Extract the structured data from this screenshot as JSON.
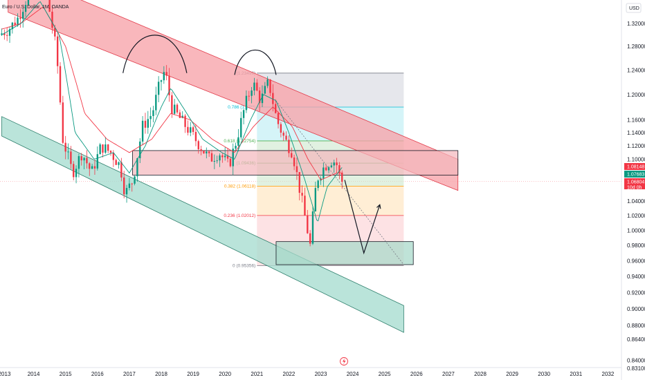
{
  "header": {
    "symbol_title": "Euro / U.S. Dollar, 1M, OANDA",
    "currency": "USD"
  },
  "colors": {
    "bull": "#089981",
    "bear": "#f23645",
    "ema_fast": "#089981",
    "ema_slow": "#f23645",
    "upper_channel_fill": "#f7a3a9",
    "upper_channel_stroke": "#e23a49",
    "lower_channel_fill": "#a6dccf",
    "lower_channel_stroke": "#2b7d6a",
    "supply_zone_fill": "#f4b6bc",
    "demand_zone_fill": "#a9d9cb",
    "tag_red": "#f23645",
    "tag_teal": "#089981",
    "tag_dark": "#787b86"
  },
  "price_tags": [
    {
      "label": "1.08148",
      "color": "tag_red"
    },
    {
      "label": "1.07683",
      "color": "tag_teal"
    },
    {
      "label": "1.06804",
      "color": "tag_red"
    },
    {
      "label": "10d 0h",
      "color": "tag_red"
    }
  ],
  "chart_data": {
    "type": "candlestick",
    "title": "Euro / U.S. Dollar, 1M, OANDA",
    "ylabel": "USD",
    "x_unit": "year",
    "xlim": [
      2013,
      2032.1
    ],
    "ylim": [
      0.83,
      1.355
    ],
    "scale": "log",
    "grid": false,
    "x_ticks": [
      "2013",
      "2014",
      "2015",
      "2016",
      "2017",
      "2018",
      "2019",
      "2020",
      "2021",
      "2022",
      "2023",
      "2024",
      "2025",
      "2026",
      "2027",
      "2028",
      "2029",
      "2030",
      "2031",
      "2032"
    ],
    "y_ticks": [
      "1.32000",
      "1.28000",
      "1.24000",
      "1.20000",
      "1.16000",
      "1.14000",
      "1.12000",
      "1.10000",
      "1.08000",
      "1.06000",
      "1.04000",
      "1.02000",
      "1.00000",
      "0.98000",
      "0.96000",
      "0.94000",
      "0.92000",
      "0.90000",
      "0.88000",
      "0.86400",
      "0.84000",
      "0.83100"
    ],
    "y_tick_values": [
      1.32,
      1.28,
      1.24,
      1.2,
      1.16,
      1.14,
      1.12,
      1.1,
      1.08,
      1.06,
      1.04,
      1.02,
      1.0,
      0.98,
      0.96,
      0.94,
      0.92,
      0.9,
      0.88,
      0.864,
      0.84,
      0.831
    ],
    "current_price": 1.06804,
    "anchor_points": [
      [
        2013.0,
        1.3
      ],
      [
        2013.3,
        1.31
      ],
      [
        2013.6,
        1.33
      ],
      [
        2013.9,
        1.37
      ],
      [
        2014.2,
        1.38
      ],
      [
        2014.5,
        1.37
      ],
      [
        2014.8,
        1.27
      ],
      [
        2015.0,
        1.13
      ],
      [
        2015.3,
        1.08
      ],
      [
        2015.6,
        1.11
      ],
      [
        2015.9,
        1.08
      ],
      [
        2016.2,
        1.12
      ],
      [
        2016.5,
        1.11
      ],
      [
        2016.8,
        1.09
      ],
      [
        2016.95,
        1.05
      ],
      [
        2017.2,
        1.07
      ],
      [
        2017.5,
        1.15
      ],
      [
        2017.8,
        1.17
      ],
      [
        2018.05,
        1.22
      ],
      [
        2018.2,
        1.24
      ],
      [
        2018.4,
        1.18
      ],
      [
        2018.7,
        1.16
      ],
      [
        2019.0,
        1.14
      ],
      [
        2019.3,
        1.12
      ],
      [
        2019.6,
        1.1
      ],
      [
        2019.9,
        1.11
      ],
      [
        2020.2,
        1.09
      ],
      [
        2020.45,
        1.13
      ],
      [
        2020.7,
        1.18
      ],
      [
        2020.95,
        1.22
      ],
      [
        2021.2,
        1.19
      ],
      [
        2021.45,
        1.22
      ],
      [
        2021.7,
        1.16
      ],
      [
        2021.95,
        1.13
      ],
      [
        2022.2,
        1.11
      ],
      [
        2022.45,
        1.05
      ],
      [
        2022.75,
        0.98
      ],
      [
        2022.95,
        1.07
      ],
      [
        2023.2,
        1.09
      ],
      [
        2023.45,
        1.1
      ],
      [
        2023.62,
        1.09
      ],
      [
        2023.7,
        1.068
      ]
    ],
    "ema_fast_anchors": [
      [
        2013.0,
        1.3
      ],
      [
        2013.6,
        1.32
      ],
      [
        2014.2,
        1.36
      ],
      [
        2014.8,
        1.3
      ],
      [
        2015.3,
        1.14
      ],
      [
        2015.9,
        1.1
      ],
      [
        2016.5,
        1.11
      ],
      [
        2017.0,
        1.08
      ],
      [
        2017.5,
        1.12
      ],
      [
        2018.0,
        1.18
      ],
      [
        2018.3,
        1.21
      ],
      [
        2018.8,
        1.17
      ],
      [
        2019.3,
        1.13
      ],
      [
        2019.9,
        1.11
      ],
      [
        2020.3,
        1.1
      ],
      [
        2020.8,
        1.16
      ],
      [
        2021.2,
        1.2
      ],
      [
        2021.6,
        1.19
      ],
      [
        2022.0,
        1.14
      ],
      [
        2022.5,
        1.07
      ],
      [
        2022.9,
        1.01
      ],
      [
        2023.2,
        1.06
      ],
      [
        2023.7,
        1.09
      ]
    ],
    "ema_slow_anchors": [
      [
        2013.0,
        1.31
      ],
      [
        2013.6,
        1.32
      ],
      [
        2014.3,
        1.35
      ],
      [
        2015.0,
        1.28
      ],
      [
        2015.6,
        1.17
      ],
      [
        2016.3,
        1.13
      ],
      [
        2017.0,
        1.11
      ],
      [
        2017.7,
        1.13
      ],
      [
        2018.3,
        1.17
      ],
      [
        2018.9,
        1.16
      ],
      [
        2019.6,
        1.13
      ],
      [
        2020.3,
        1.11
      ],
      [
        2020.9,
        1.15
      ],
      [
        2021.5,
        1.18
      ],
      [
        2022.1,
        1.15
      ],
      [
        2022.6,
        1.1
      ],
      [
        2023.0,
        1.07
      ],
      [
        2023.5,
        1.08
      ],
      [
        2023.7,
        1.08
      ]
    ],
    "fibonacci": {
      "x_start": 2021.0,
      "x_end": 2025.6,
      "levels": [
        {
          "ratio": "1",
          "value": 1.23496,
          "label": "(1.23496)",
          "color": "#787b86",
          "fill": "#d1d4dc"
        },
        {
          "ratio": "0.786",
          "value": 1.1799,
          "label": "0.786 (1.17**)",
          "color": "#00bcd4",
          "fill": "#b2ebf2"
        },
        {
          "ratio": "0.618",
          "value": 1.12754,
          "label": "0.618 (1.12754)",
          "color": "#4caf50",
          "fill": "#c8e6c9"
        },
        {
          "ratio": "0.5",
          "value": 1.09436,
          "label": "(1.09436)",
          "color": "#4caf50",
          "fill": "#c8e6c9"
        },
        {
          "ratio": "0.382",
          "value": 1.06118,
          "label": "0.382 (1.06118)",
          "color": "#ff9800",
          "fill": "#ffe0b2"
        },
        {
          "ratio": "0.236",
          "value": 1.02012,
          "label": "0.236 (1.02012)",
          "color": "#f23645",
          "fill": "#fccbcd"
        },
        {
          "ratio": "0",
          "value": 0.95356,
          "label": "0 (0.95356)",
          "color": "#787b86",
          "fill": "#fccbcd"
        }
      ]
    },
    "upper_channel": {
      "x0": 2013.2,
      "top0": 1.42,
      "bottom0": 1.34,
      "x1": 2027.3,
      "top1": 1.1,
      "bottom1": 1.055
    },
    "lower_channel": {
      "x0": 2013.0,
      "top0": 1.165,
      "bottom0": 1.135,
      "x1": 2025.6,
      "top1": 0.904,
      "bottom1": 0.872
    },
    "supply_zone": {
      "x0": 2017.1,
      "x1": 2027.3,
      "top": 1.113,
      "bottom": 1.077
    },
    "demand_zone": {
      "x0": 2021.6,
      "x1": 2025.9,
      "top": 0.985,
      "bottom": 0.955
    },
    "projection_path": [
      [
        2023.75,
        1.07
      ],
      [
        2024.35,
        0.97
      ],
      [
        2024.85,
        1.035
      ]
    ],
    "dashed_trend": [
      [
        2021.6,
        1.19
      ],
      [
        2025.6,
        0.955
      ]
    ],
    "head_arcs": [
      {
        "x0": 2016.8,
        "x1": 2018.8,
        "peak": 1.295,
        "base": 1.235
      },
      {
        "x0": 2020.3,
        "x1": 2021.6,
        "peak": 1.262,
        "base": 1.232
      }
    ]
  }
}
